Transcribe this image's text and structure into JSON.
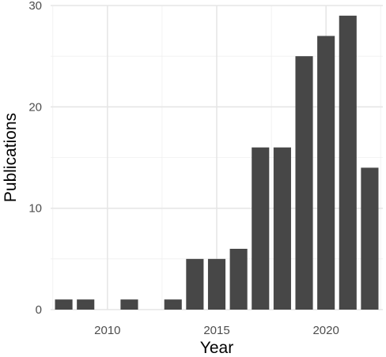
{
  "chart_data": {
    "type": "bar",
    "categories": [
      2008,
      2009,
      2010,
      2011,
      2012,
      2013,
      2014,
      2015,
      2016,
      2017,
      2018,
      2019,
      2020,
      2021,
      2022
    ],
    "values": [
      1,
      1,
      0,
      1,
      0,
      1,
      5,
      5,
      6,
      16,
      16,
      25,
      27,
      29,
      14
    ],
    "title": "",
    "xlabel": "Year",
    "ylabel": "Publications",
    "xlim": [
      2007.4,
      2022.6
    ],
    "ylim": [
      0,
      30
    ],
    "x_ticks": [
      2010,
      2015,
      2020
    ],
    "y_ticks": [
      0,
      10,
      20,
      30
    ],
    "grid": true,
    "bar_color": "#474747",
    "grid_color": "#e6e6e6"
  }
}
